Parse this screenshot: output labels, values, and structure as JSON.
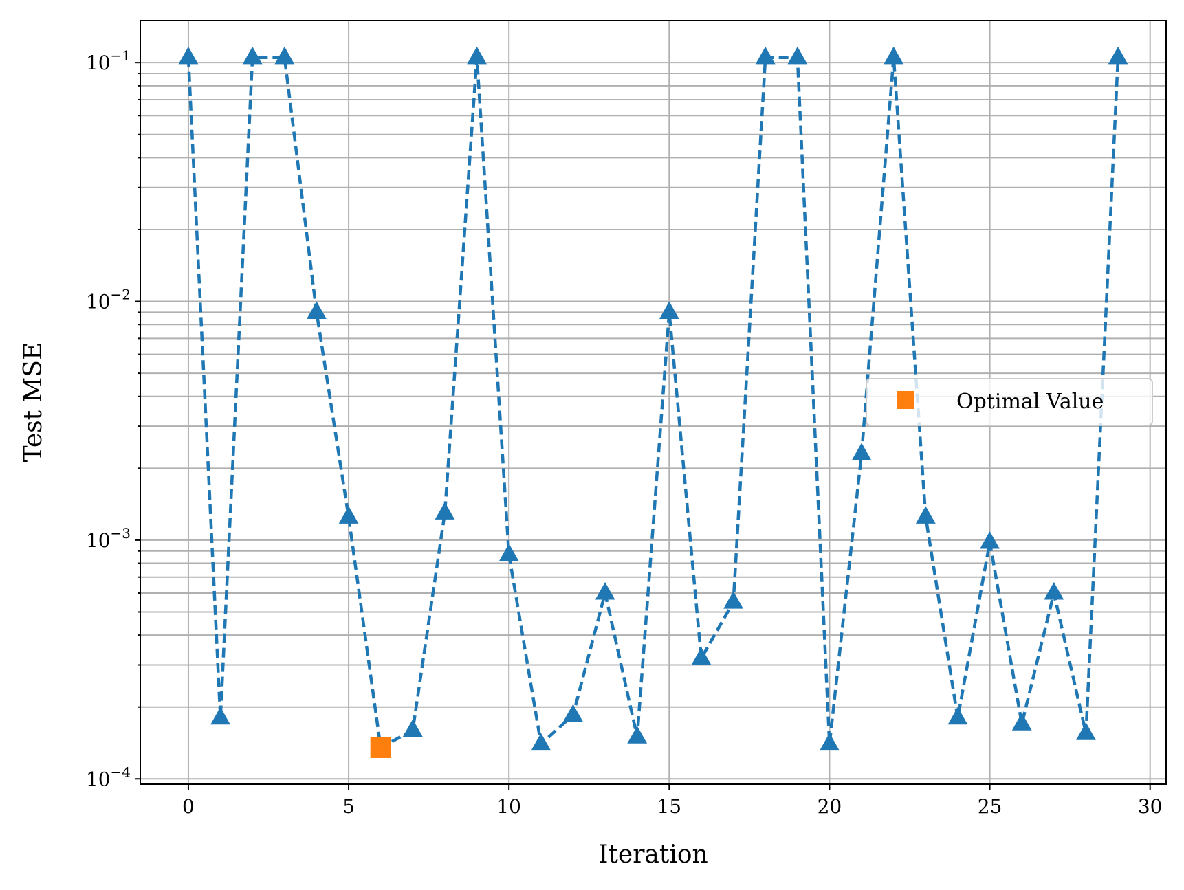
{
  "chart_data": {
    "type": "line",
    "xlabel": "Iteration",
    "ylabel": "Test MSE",
    "x_scale": "linear",
    "y_scale": "log",
    "xlim": [
      -1.5,
      30.5
    ],
    "ylim": [
      9.5e-05,
      0.15
    ],
    "x_ticks": [
      0,
      5,
      10,
      15,
      20,
      25,
      30
    ],
    "x_tick_labels": [
      "0",
      "5",
      "10",
      "15",
      "20",
      "25",
      "30"
    ],
    "y_ticks": [
      0.0001,
      0.001,
      0.01,
      0.1
    ],
    "y_tick_labels": [
      {
        "base": "10",
        "exp": "−4"
      },
      {
        "base": "10",
        "exp": "−3"
      },
      {
        "base": "10",
        "exp": "−2"
      },
      {
        "base": "10",
        "exp": "−1"
      }
    ],
    "grid": true,
    "legend_position": "center-right",
    "series": [
      {
        "marker": "triangle-up",
        "line_style": "dashed",
        "color": "#1f77b4",
        "x": [
          0,
          1,
          2,
          3,
          4,
          5,
          6,
          7,
          8,
          9,
          10,
          11,
          12,
          13,
          14,
          15,
          16,
          17,
          18,
          19,
          20,
          21,
          22,
          23,
          24,
          25,
          26,
          27,
          28,
          29
        ],
        "values": [
          0.105,
          0.00018,
          0.105,
          0.105,
          0.009,
          0.00125,
          0.000135,
          0.00016,
          0.0013,
          0.105,
          0.00087,
          0.00014,
          0.000185,
          0.0006,
          0.00015,
          0.009,
          0.00032,
          0.00055,
          0.105,
          0.105,
          0.00014,
          0.0023,
          0.105,
          0.00125,
          0.00018,
          0.00098,
          0.00017,
          0.0006,
          0.000155,
          0.105
        ]
      },
      {
        "name": "Optimal Value",
        "marker": "square",
        "color": "#ff7f0e",
        "x": [
          6
        ],
        "values": [
          0.000135
        ]
      }
    ]
  }
}
